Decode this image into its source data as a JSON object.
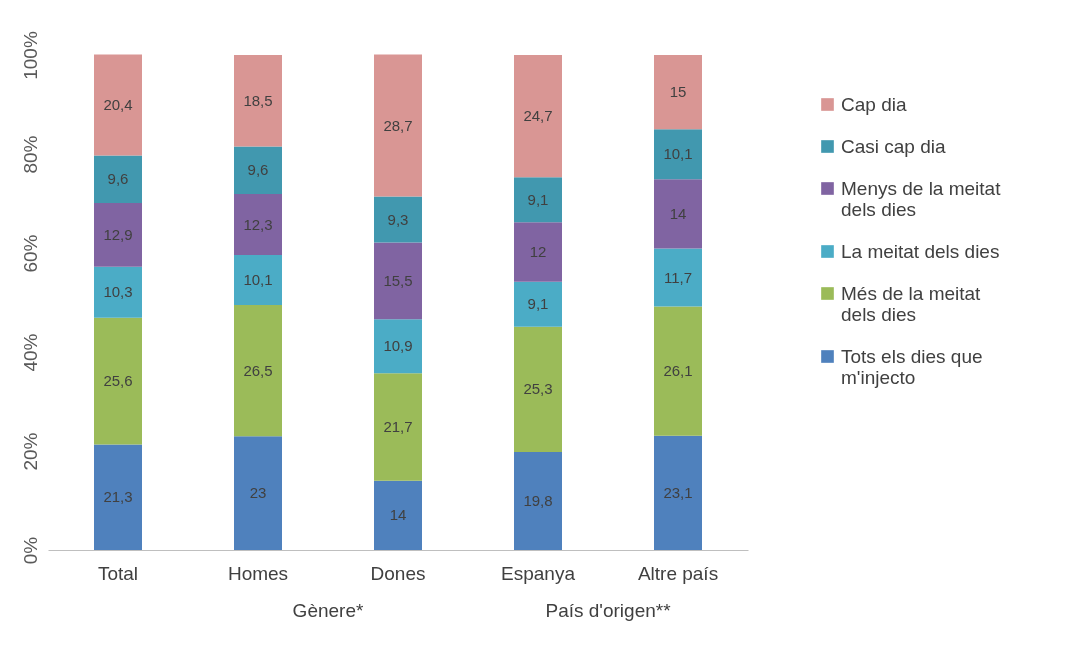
{
  "chart_data": {
    "type": "bar",
    "stacked": true,
    "categories": [
      "Total",
      "Homes",
      "Dones",
      "Espanya",
      "Altre país"
    ],
    "series": [
      {
        "name": "Tots els dies que m'injecto",
        "color": "#4f81bd",
        "values": [
          21.3,
          23,
          14,
          19.8,
          23.1
        ],
        "value_labels": [
          "21,3",
          "23",
          "14",
          "19,8",
          "23,1"
        ]
      },
      {
        "name": "Més de la meitat dels dies",
        "color": "#9bbb59",
        "values": [
          25.6,
          26.5,
          21.7,
          25.3,
          26.1
        ],
        "value_labels": [
          "25,6",
          "26,5",
          "21,7",
          "25,3",
          "26,1"
        ]
      },
      {
        "name": "La meitat dels dies",
        "color": "#4bacc6",
        "values": [
          10.3,
          10.1,
          10.9,
          9.1,
          11.7
        ],
        "value_labels": [
          "10,3",
          "10,1",
          "10,9",
          "9,1",
          "11,7"
        ]
      },
      {
        "name": "Menys de la meitat dels dies",
        "color": "#8064a2",
        "values": [
          12.9,
          12.3,
          15.5,
          12,
          14
        ],
        "value_labels": [
          "12,9",
          "12,3",
          "15,5",
          "12",
          "14"
        ]
      },
      {
        "name": "Casi cap dia",
        "color": "#4198af",
        "values": [
          9.6,
          9.6,
          9.3,
          9.1,
          10.1
        ],
        "value_labels": [
          "9,6",
          "9,6",
          "9,3",
          "9,1",
          "10,1"
        ]
      },
      {
        "name": "Cap dia",
        "color": "#d99694",
        "values": [
          20.4,
          18.5,
          28.7,
          24.7,
          15
        ],
        "value_labels": [
          "20,4",
          "18,5",
          "28,7",
          "24,7",
          "15"
        ]
      }
    ],
    "ylim": [
      0,
      100
    ],
    "yticks": [
      {
        "value": 0,
        "label": "0%"
      },
      {
        "value": 20,
        "label": "20%"
      },
      {
        "value": 40,
        "label": "40%"
      },
      {
        "value": 60,
        "label": "60%"
      },
      {
        "value": 80,
        "label": "80%"
      },
      {
        "value": 100,
        "label": "100%"
      }
    ],
    "annotations": [
      "Gènere*",
      "País d'origen**"
    ],
    "legend": "right",
    "grid": false
  }
}
